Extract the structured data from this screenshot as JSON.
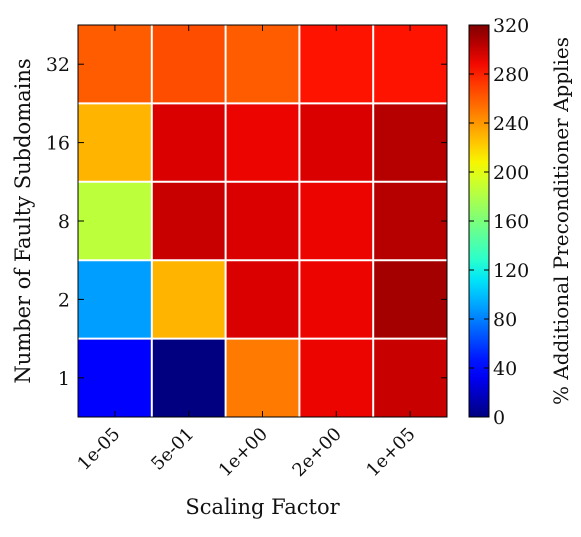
{
  "chart_data": {
    "type": "heatmap",
    "title": "",
    "xlabel": "Scaling Factor",
    "ylabel": "Number of Faulty Subdomains",
    "x_categories": [
      "1e-05",
      "5e-01",
      "1e+00",
      "2e+00",
      "1e+05"
    ],
    "y_categories": [
      "1",
      "2",
      "8",
      "16",
      "32"
    ],
    "values": [
      [
        40,
        0,
        250,
        290,
        300
      ],
      [
        90,
        230,
        295,
        290,
        310
      ],
      [
        185,
        300,
        295,
        290,
        305
      ],
      [
        230,
        295,
        290,
        295,
        305
      ],
      [
        260,
        265,
        260,
        285,
        285
      ]
    ],
    "colorbar": {
      "label": "% Additional Preconditioner Applies",
      "range": [
        0,
        320
      ],
      "ticks": [
        0,
        40,
        80,
        120,
        160,
        200,
        240,
        280,
        320
      ],
      "colormap": "jet"
    },
    "grid_color": "#ffffff"
  }
}
